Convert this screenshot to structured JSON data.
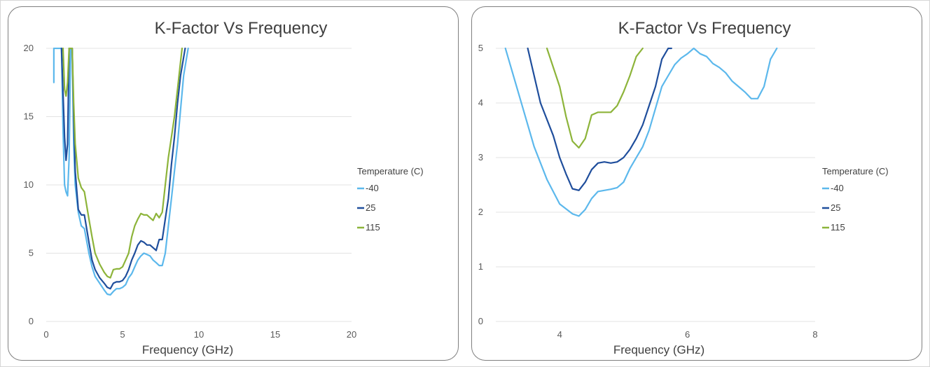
{
  "chart_data": [
    {
      "type": "line",
      "title": "K-Factor Vs Frequency",
      "xlabel": "Frequency (GHz)",
      "ylabel": "",
      "xlim": [
        0,
        20
      ],
      "ylim": [
        0,
        20
      ],
      "xticks": [
        0,
        5,
        10,
        15,
        20
      ],
      "yticks": [
        0,
        5,
        10,
        15,
        20
      ],
      "grid": "horizontal",
      "legend_title": "Temperature (C)",
      "legend_position": "right",
      "series": [
        {
          "name": "-40",
          "color": "#5cb8ec",
          "x": [
            0.5,
            0.5,
            1.0,
            1.1,
            1.2,
            1.3,
            1.4,
            1.5,
            1.6,
            1.7,
            1.8,
            1.9,
            2.1,
            2.3,
            2.5,
            2.8,
            3.0,
            3.2,
            3.5,
            3.8,
            4.0,
            4.2,
            4.4,
            4.6,
            4.8,
            5.0,
            5.2,
            5.4,
            5.6,
            5.8,
            6.0,
            6.2,
            6.4,
            6.6,
            6.8,
            7.0,
            7.2,
            7.4,
            7.6,
            7.8,
            8.0,
            8.2,
            8.4,
            8.6,
            8.8,
            9.0,
            9.3
          ],
          "y": [
            17.5,
            20.0,
            20.0,
            14.0,
            10.0,
            9.5,
            9.2,
            12.0,
            20.0,
            20.0,
            13.0,
            10.0,
            8.0,
            7.0,
            6.8,
            5.0,
            4.0,
            3.3,
            2.8,
            2.3,
            2.0,
            1.95,
            2.2,
            2.4,
            2.4,
            2.5,
            2.7,
            3.2,
            3.5,
            4.0,
            4.5,
            4.8,
            5.0,
            4.9,
            4.8,
            4.5,
            4.3,
            4.1,
            4.1,
            5.0,
            7.0,
            9.0,
            11.0,
            13.0,
            15.5,
            18.0,
            20.0
          ]
        },
        {
          "name": "25",
          "color": "#1f4e9c",
          "x": [
            1.0,
            1.2,
            1.3,
            1.4,
            1.5,
            1.6,
            1.7,
            1.8,
            1.9,
            2.1,
            2.3,
            2.5,
            2.8,
            3.0,
            3.2,
            3.5,
            3.8,
            4.0,
            4.2,
            4.4,
            4.6,
            4.8,
            5.0,
            5.2,
            5.4,
            5.6,
            5.8,
            6.0,
            6.2,
            6.4,
            6.6,
            6.8,
            7.0,
            7.2,
            7.4,
            7.6,
            7.8,
            8.0,
            8.2,
            8.4,
            8.6,
            8.8,
            9.1
          ],
          "y": [
            20.0,
            13.5,
            11.8,
            13.0,
            20.0,
            20.0,
            20.0,
            15.0,
            11.0,
            8.2,
            7.8,
            7.8,
            5.8,
            4.5,
            3.8,
            3.2,
            2.8,
            2.5,
            2.4,
            2.8,
            2.9,
            2.9,
            3.0,
            3.3,
            3.8,
            4.5,
            5.0,
            5.6,
            5.9,
            5.8,
            5.6,
            5.6,
            5.4,
            5.2,
            6.0,
            6.0,
            7.5,
            9.0,
            11.5,
            13.5,
            16.0,
            18.0,
            20.0
          ]
        },
        {
          "name": "115",
          "color": "#8db43a",
          "x": [
            1.1,
            1.2,
            1.3,
            1.4,
            1.5,
            1.6,
            1.7,
            1.8,
            1.9,
            2.1,
            2.3,
            2.5,
            2.8,
            3.0,
            3.2,
            3.5,
            3.8,
            4.0,
            4.2,
            4.4,
            4.6,
            4.8,
            5.0,
            5.2,
            5.4,
            5.6,
            5.8,
            6.0,
            6.2,
            6.4,
            6.6,
            6.8,
            7.0,
            7.2,
            7.4,
            7.6,
            7.8,
            8.0,
            8.2,
            8.4,
            8.6,
            8.8,
            8.9
          ],
          "y": [
            20.0,
            17.0,
            16.5,
            17.5,
            20.0,
            20.0,
            20.0,
            16.0,
            13.0,
            10.5,
            9.8,
            9.5,
            7.5,
            6.2,
            5.0,
            4.2,
            3.6,
            3.3,
            3.2,
            3.8,
            3.85,
            3.85,
            4.0,
            4.5,
            5.0,
            6.2,
            7.0,
            7.5,
            7.9,
            7.8,
            7.8,
            7.6,
            7.4,
            7.9,
            7.6,
            8.0,
            10.0,
            12.0,
            13.5,
            15.0,
            17.0,
            19.0,
            20.0
          ]
        }
      ]
    },
    {
      "type": "line",
      "title": "K-Factor Vs Frequency",
      "xlabel": "Frequency (GHz)",
      "ylabel": "",
      "xlim": [
        3,
        8
      ],
      "ylim": [
        0,
        5
      ],
      "xticks": [
        4,
        6,
        8
      ],
      "yticks": [
        0,
        1,
        2,
        3,
        4,
        5
      ],
      "grid": "horizontal",
      "legend_title": "Temperature (C)",
      "legend_position": "right",
      "series": [
        {
          "name": "-40",
          "color": "#5cb8ec",
          "x": [
            3.15,
            3.4,
            3.6,
            3.8,
            4.0,
            4.2,
            4.3,
            4.4,
            4.5,
            4.6,
            4.7,
            4.8,
            4.9,
            5.0,
            5.1,
            5.2,
            5.3,
            5.4,
            5.5,
            5.6,
            5.7,
            5.8,
            5.9,
            6.0,
            6.1,
            6.2,
            6.3,
            6.4,
            6.5,
            6.6,
            6.7,
            6.8,
            6.9,
            7.0,
            7.1,
            7.2,
            7.3,
            7.4
          ],
          "y": [
            5.0,
            4.0,
            3.2,
            2.6,
            2.15,
            1.97,
            1.93,
            2.05,
            2.25,
            2.38,
            2.4,
            2.42,
            2.45,
            2.55,
            2.8,
            3.0,
            3.2,
            3.5,
            3.9,
            4.3,
            4.5,
            4.7,
            4.82,
            4.9,
            5.0,
            4.9,
            4.85,
            4.72,
            4.65,
            4.55,
            4.4,
            4.3,
            4.2,
            4.08,
            4.08,
            4.3,
            4.8,
            5.0
          ]
        },
        {
          "name": "25",
          "color": "#1f4e9c",
          "x": [
            3.5,
            3.7,
            3.9,
            4.0,
            4.1,
            4.2,
            4.3,
            4.4,
            4.5,
            4.6,
            4.7,
            4.8,
            4.9,
            5.0,
            5.1,
            5.2,
            5.3,
            5.4,
            5.5,
            5.6,
            5.7,
            5.75
          ],
          "y": [
            5.0,
            4.0,
            3.4,
            3.0,
            2.7,
            2.43,
            2.4,
            2.55,
            2.78,
            2.9,
            2.92,
            2.9,
            2.92,
            3.0,
            3.15,
            3.35,
            3.6,
            3.95,
            4.3,
            4.8,
            5.0,
            5.0
          ]
        },
        {
          "name": "115",
          "color": "#8db43a",
          "x": [
            3.8,
            4.0,
            4.1,
            4.2,
            4.3,
            4.4,
            4.5,
            4.6,
            4.7,
            4.8,
            4.9,
            5.0,
            5.1,
            5.2,
            5.3
          ],
          "y": [
            5.0,
            4.3,
            3.75,
            3.3,
            3.18,
            3.35,
            3.78,
            3.83,
            3.83,
            3.83,
            3.95,
            4.2,
            4.5,
            4.85,
            5.0
          ]
        }
      ]
    }
  ]
}
